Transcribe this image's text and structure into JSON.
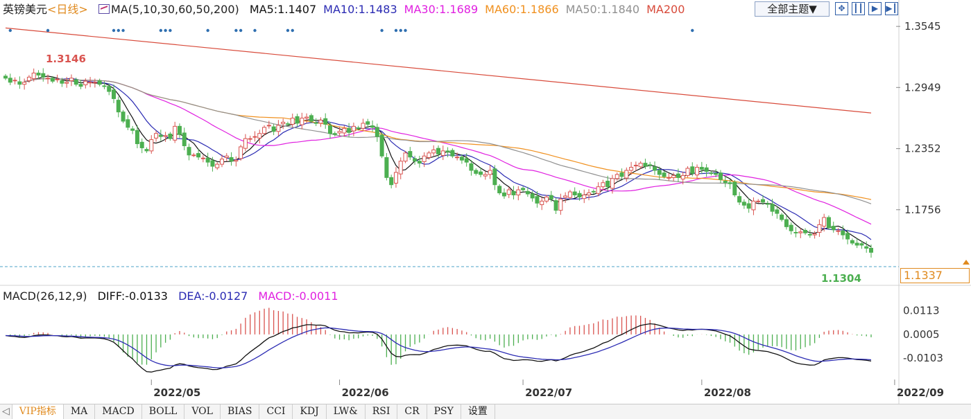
{
  "header": {
    "title": "英镑美元",
    "period": "<日线>",
    "ma_spec": "MA(5,10,30,60,50,200)",
    "ma_values": [
      {
        "label": "MA5:1.1407",
        "color": "#111111"
      },
      {
        "label": "MA10:1.1483",
        "color": "#2b2bb3"
      },
      {
        "label": "MA30:1.1689",
        "color": "#e020e0"
      },
      {
        "label": "MA60:1.1866",
        "color": "#f0901e"
      },
      {
        "label": "MA50:1.1840",
        "color": "#909090"
      },
      {
        "label": "MA200",
        "color": "#d84a3a"
      }
    ],
    "theme_button": "全部主题▼",
    "tool_icons": [
      "move-icon",
      "bars-icon",
      "next-icon",
      "end-icon"
    ]
  },
  "macd_header": {
    "spec": "MACD(26,12,9)",
    "diff": "DIFF:-0.0133",
    "dea": "DEA:-0.0127",
    "macd": "MACD:-0.0011"
  },
  "current_price": "1.1337",
  "tabs": {
    "arrow": "◁",
    "items": [
      "VIP指标",
      "MA",
      "MACD",
      "BOLL",
      "VOL",
      "BIAS",
      "CCI",
      "KDJ",
      "LW&",
      "RSI",
      "CR",
      "PSY",
      "设置"
    ],
    "active": 0
  },
  "colors": {
    "up": "#d9534f",
    "down": "#4caf50",
    "axis_text": "#333333",
    "price_line": "#4ba3c7"
  },
  "chart_data": {
    "type": "candlestick",
    "price_axis": {
      "ticks": [
        "1.3545",
        "1.2949",
        "1.2352",
        "1.1756"
      ],
      "range": [
        1.118,
        1.36
      ]
    },
    "macd_axis": {
      "ticks": [
        "0.0113",
        "0.0005",
        "-0.0103"
      ],
      "range": [
        -0.0225,
        0.014
      ]
    },
    "x_labels": [
      "2022/05",
      "2022/06",
      "2022/07",
      "2022/08",
      "2022/09"
    ],
    "annotations": {
      "high": "1.3146",
      "low": "1.1304"
    },
    "close": [
      1.304,
      1.3,
      1.302,
      1.298,
      1.3,
      1.305,
      1.309,
      1.307,
      1.305,
      1.304,
      1.301,
      1.303,
      1.299,
      1.3,
      1.304,
      1.298,
      1.296,
      1.301,
      1.3,
      1.3,
      1.298,
      1.296,
      1.291,
      1.284,
      1.271,
      1.262,
      1.256,
      1.253,
      1.24,
      1.236,
      1.233,
      1.244,
      1.25,
      1.247,
      1.248,
      1.245,
      1.257,
      1.249,
      1.238,
      1.229,
      1.229,
      1.227,
      1.226,
      1.222,
      1.218,
      1.22,
      1.225,
      1.228,
      1.223,
      1.224,
      1.237,
      1.245,
      1.245,
      1.247,
      1.25,
      1.256,
      1.258,
      1.252,
      1.258,
      1.261,
      1.259,
      1.265,
      1.26,
      1.265,
      1.266,
      1.262,
      1.26,
      1.263,
      1.259,
      1.25,
      1.249,
      1.252,
      1.255,
      1.251,
      1.257,
      1.255,
      1.26,
      1.259,
      1.256,
      1.247,
      1.228,
      1.207,
      1.2,
      1.212,
      1.223,
      1.231,
      1.227,
      1.223,
      1.221,
      1.228,
      1.231,
      1.234,
      1.23,
      1.233,
      1.232,
      1.228,
      1.227,
      1.224,
      1.222,
      1.214,
      1.211,
      1.21,
      1.21,
      1.214,
      1.2,
      1.192,
      1.189,
      1.195,
      1.19,
      1.195,
      1.195,
      1.191,
      1.187,
      1.182,
      1.184,
      1.188,
      1.186,
      1.175,
      1.186,
      1.189,
      1.193,
      1.19,
      1.188,
      1.19,
      1.192,
      1.193,
      1.198,
      1.202,
      1.198,
      1.206,
      1.21,
      1.208,
      1.214,
      1.217,
      1.219,
      1.221,
      1.218,
      1.219,
      1.214,
      1.21,
      1.208,
      1.207,
      1.209,
      1.207,
      1.209,
      1.216,
      1.211,
      1.217,
      1.215,
      1.213,
      1.211,
      1.21,
      1.205,
      1.202,
      1.201,
      1.19,
      1.183,
      1.18,
      1.177,
      1.184,
      1.184,
      1.183,
      1.181,
      1.174,
      1.172,
      1.166,
      1.159,
      1.155,
      1.153,
      1.154,
      1.153,
      1.151,
      1.152,
      1.161,
      1.168,
      1.158,
      1.156,
      1.155,
      1.151,
      1.147,
      1.143,
      1.141,
      1.141,
      1.138,
      1.134
    ]
  }
}
